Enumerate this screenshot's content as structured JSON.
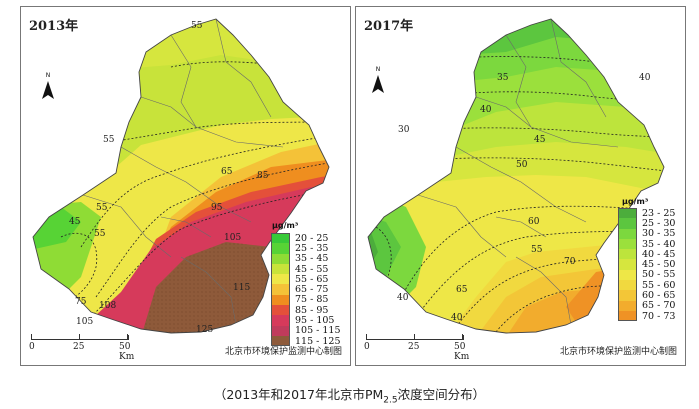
{
  "caption": {
    "prefix": "（2013年和2017年北京市PM",
    "sub": "2.5",
    "suffix": "浓度空间分布）"
  },
  "maps": [
    {
      "year": "2013年",
      "unit": "μg/m³",
      "legend": [
        {
          "label": "20 - 25",
          "color": "#38c938"
        },
        {
          "label": "25 - 35",
          "color": "#57d335"
        },
        {
          "label": "35 - 45",
          "color": "#8fdc35"
        },
        {
          "label": "45 - 55",
          "color": "#c8e33a"
        },
        {
          "label": "55 - 65",
          "color": "#eee748"
        },
        {
          "label": "65 - 75",
          "color": "#f4c238"
        },
        {
          "label": "75 - 85",
          "color": "#ef8e1f"
        },
        {
          "label": "85 - 95",
          "color": "#e4503a"
        },
        {
          "label": "95 - 105",
          "color": "#d63a5b"
        },
        {
          "label": "105 - 115",
          "color": "#c03b5c"
        },
        {
          "label": "115 - 125",
          "color": "#8e5a3a"
        }
      ],
      "contour_labels": [
        "55",
        "55",
        "45",
        "55",
        "55",
        "65",
        "85",
        "95",
        "105",
        "75",
        "108",
        "105",
        "115",
        "125"
      ],
      "scale": {
        "labels": [
          "0",
          "25",
          "50 Km"
        ]
      },
      "credit": "北京市环境保护监测中心制图",
      "north": "N"
    },
    {
      "year": "2017年",
      "unit": "μg/m³",
      "legend": [
        {
          "label": "23 - 25",
          "color": "#4cad3c"
        },
        {
          "label": "25 - 30",
          "color": "#5cc63f"
        },
        {
          "label": "30 - 35",
          "color": "#7cd83e"
        },
        {
          "label": "35 - 40",
          "color": "#9be03c"
        },
        {
          "label": "40 - 45",
          "color": "#bde43c"
        },
        {
          "label": "45 - 50",
          "color": "#d6e63e"
        },
        {
          "label": "50 - 55",
          "color": "#eee747"
        },
        {
          "label": "55 - 60",
          "color": "#f1d93f"
        },
        {
          "label": "60 - 65",
          "color": "#f3c637"
        },
        {
          "label": "65 - 70",
          "color": "#f2ac2d"
        },
        {
          "label": "70 - 73",
          "color": "#ef9225"
        }
      ],
      "contour_labels": [
        "35",
        "40",
        "30",
        "40",
        "45",
        "50",
        "60",
        "55",
        "70",
        "40",
        "65",
        "40"
      ],
      "scale": {
        "labels": [
          "0",
          "25",
          "50 Km"
        ]
      },
      "credit": "北京市环境保护监测中心制图",
      "north": "N"
    }
  ]
}
